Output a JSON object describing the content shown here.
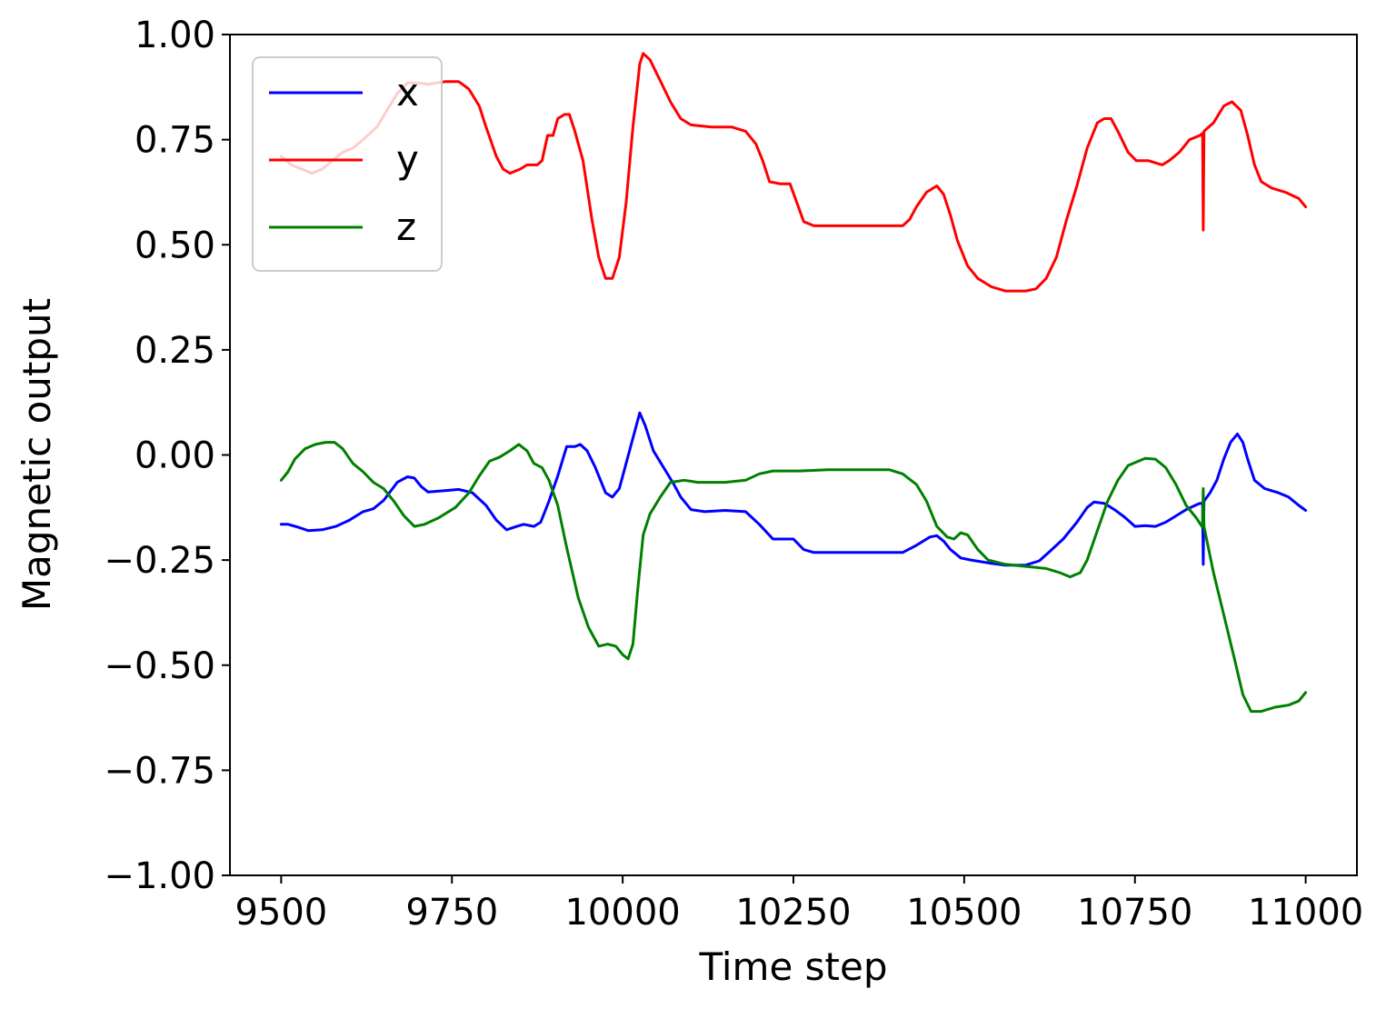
{
  "chart_data": {
    "type": "line",
    "xlabel": "Time step",
    "ylabel": "Magnetic output",
    "xlim": [
      9425,
      11075
    ],
    "ylim": [
      -1.0,
      1.0
    ],
    "x_ticks": [
      9500,
      9750,
      10000,
      10250,
      10500,
      10750,
      11000
    ],
    "x_tick_labels": [
      "9500",
      "9750",
      "10000",
      "10250",
      "10500",
      "10750",
      "11000"
    ],
    "y_ticks": [
      1.0,
      0.75,
      0.5,
      0.25,
      0.0,
      -0.25,
      -0.5,
      -0.75,
      -1.0
    ],
    "y_tick_labels": [
      "1.00",
      "0.75",
      "0.50",
      "0.25",
      "0.00",
      "−0.25",
      "−0.50",
      "−0.75",
      "−1.00"
    ],
    "grid": false,
    "legend_position": "top-left",
    "series": [
      {
        "name": "x",
        "color": "#0000ff",
        "points": [
          [
            9500,
            -0.165
          ],
          [
            9510,
            -0.165
          ],
          [
            9525,
            -0.172
          ],
          [
            9540,
            -0.18
          ],
          [
            9560,
            -0.178
          ],
          [
            9580,
            -0.17
          ],
          [
            9600,
            -0.155
          ],
          [
            9620,
            -0.135
          ],
          [
            9635,
            -0.128
          ],
          [
            9650,
            -0.108
          ],
          [
            9670,
            -0.065
          ],
          [
            9685,
            -0.052
          ],
          [
            9695,
            -0.055
          ],
          [
            9705,
            -0.075
          ],
          [
            9715,
            -0.088
          ],
          [
            9740,
            -0.085
          ],
          [
            9760,
            -0.082
          ],
          [
            9780,
            -0.09
          ],
          [
            9800,
            -0.12
          ],
          [
            9815,
            -0.155
          ],
          [
            9830,
            -0.178
          ],
          [
            9845,
            -0.17
          ],
          [
            9855,
            -0.165
          ],
          [
            9870,
            -0.17
          ],
          [
            9880,
            -0.16
          ],
          [
            9892,
            -0.11
          ],
          [
            9905,
            -0.05
          ],
          [
            9918,
            0.02
          ],
          [
            9930,
            0.02
          ],
          [
            9938,
            0.025
          ],
          [
            9948,
            0.01
          ],
          [
            9960,
            -0.03
          ],
          [
            9975,
            -0.09
          ],
          [
            9985,
            -0.1
          ],
          [
            9995,
            -0.08
          ],
          [
            10005,
            -0.02
          ],
          [
            10015,
            0.04
          ],
          [
            10025,
            0.1
          ],
          [
            10033,
            0.07
          ],
          [
            10045,
            0.01
          ],
          [
            10060,
            -0.03
          ],
          [
            10075,
            -0.07
          ],
          [
            10085,
            -0.1
          ],
          [
            10100,
            -0.13
          ],
          [
            10120,
            -0.135
          ],
          [
            10150,
            -0.132
          ],
          [
            10180,
            -0.135
          ],
          [
            10200,
            -0.165
          ],
          [
            10220,
            -0.2
          ],
          [
            10240,
            -0.2
          ],
          [
            10250,
            -0.2
          ],
          [
            10265,
            -0.225
          ],
          [
            10280,
            -0.232
          ],
          [
            10320,
            -0.232
          ],
          [
            10360,
            -0.232
          ],
          [
            10410,
            -0.232
          ],
          [
            10430,
            -0.215
          ],
          [
            10450,
            -0.195
          ],
          [
            10460,
            -0.192
          ],
          [
            10470,
            -0.205
          ],
          [
            10480,
            -0.225
          ],
          [
            10495,
            -0.245
          ],
          [
            10510,
            -0.25
          ],
          [
            10540,
            -0.258
          ],
          [
            10560,
            -0.262
          ],
          [
            10590,
            -0.262
          ],
          [
            10610,
            -0.252
          ],
          [
            10625,
            -0.23
          ],
          [
            10645,
            -0.2
          ],
          [
            10665,
            -0.16
          ],
          [
            10680,
            -0.125
          ],
          [
            10690,
            -0.112
          ],
          [
            10705,
            -0.115
          ],
          [
            10720,
            -0.13
          ],
          [
            10735,
            -0.148
          ],
          [
            10750,
            -0.17
          ],
          [
            10765,
            -0.168
          ],
          [
            10780,
            -0.17
          ],
          [
            10795,
            -0.16
          ],
          [
            10810,
            -0.145
          ],
          [
            10825,
            -0.13
          ],
          [
            10838,
            -0.12
          ],
          [
            10845,
            -0.115
          ],
          [
            10849,
            -0.115
          ],
          [
            10850,
            -0.26
          ],
          [
            10851,
            -0.11
          ],
          [
            10860,
            -0.09
          ],
          [
            10870,
            -0.06
          ],
          [
            10880,
            -0.01
          ],
          [
            10890,
            0.03
          ],
          [
            10900,
            0.05
          ],
          [
            10908,
            0.03
          ],
          [
            10915,
            -0.01
          ],
          [
            10925,
            -0.06
          ],
          [
            10940,
            -0.08
          ],
          [
            10960,
            -0.09
          ],
          [
            10975,
            -0.1
          ],
          [
            10990,
            -0.12
          ],
          [
            11000,
            -0.132
          ]
        ]
      },
      {
        "name": "y",
        "color": "#ff0000",
        "points": [
          [
            9500,
            0.71
          ],
          [
            9515,
            0.69
          ],
          [
            9530,
            0.68
          ],
          [
            9545,
            0.67
          ],
          [
            9560,
            0.68
          ],
          [
            9575,
            0.7
          ],
          [
            9590,
            0.72
          ],
          [
            9605,
            0.73
          ],
          [
            9620,
            0.75
          ],
          [
            9640,
            0.78
          ],
          [
            9655,
            0.82
          ],
          [
            9670,
            0.86
          ],
          [
            9685,
            0.885
          ],
          [
            9700,
            0.885
          ],
          [
            9715,
            0.882
          ],
          [
            9740,
            0.888
          ],
          [
            9760,
            0.888
          ],
          [
            9775,
            0.87
          ],
          [
            9790,
            0.83
          ],
          [
            9800,
            0.78
          ],
          [
            9815,
            0.71
          ],
          [
            9825,
            0.68
          ],
          [
            9835,
            0.67
          ],
          [
            9850,
            0.68
          ],
          [
            9860,
            0.69
          ],
          [
            9875,
            0.69
          ],
          [
            9882,
            0.7
          ],
          [
            9890,
            0.76
          ],
          [
            9898,
            0.76
          ],
          [
            9905,
            0.8
          ],
          [
            9915,
            0.81
          ],
          [
            9922,
            0.81
          ],
          [
            9930,
            0.77
          ],
          [
            9942,
            0.7
          ],
          [
            9955,
            0.56
          ],
          [
            9965,
            0.47
          ],
          [
            9975,
            0.42
          ],
          [
            9985,
            0.42
          ],
          [
            9995,
            0.47
          ],
          [
            10005,
            0.6
          ],
          [
            10015,
            0.78
          ],
          [
            10025,
            0.93
          ],
          [
            10030,
            0.955
          ],
          [
            10040,
            0.94
          ],
          [
            10055,
            0.89
          ],
          [
            10070,
            0.84
          ],
          [
            10085,
            0.8
          ],
          [
            10100,
            0.785
          ],
          [
            10130,
            0.78
          ],
          [
            10160,
            0.78
          ],
          [
            10180,
            0.77
          ],
          [
            10195,
            0.74
          ],
          [
            10205,
            0.7
          ],
          [
            10215,
            0.65
          ],
          [
            10230,
            0.645
          ],
          [
            10245,
            0.645
          ],
          [
            10255,
            0.6
          ],
          [
            10265,
            0.555
          ],
          [
            10280,
            0.545
          ],
          [
            10320,
            0.545
          ],
          [
            10360,
            0.545
          ],
          [
            10410,
            0.545
          ],
          [
            10420,
            0.56
          ],
          [
            10430,
            0.59
          ],
          [
            10445,
            0.625
          ],
          [
            10460,
            0.64
          ],
          [
            10470,
            0.62
          ],
          [
            10480,
            0.57
          ],
          [
            10490,
            0.51
          ],
          [
            10505,
            0.45
          ],
          [
            10520,
            0.42
          ],
          [
            10540,
            0.4
          ],
          [
            10560,
            0.39
          ],
          [
            10590,
            0.39
          ],
          [
            10605,
            0.395
          ],
          [
            10620,
            0.42
          ],
          [
            10635,
            0.47
          ],
          [
            10650,
            0.56
          ],
          [
            10665,
            0.64
          ],
          [
            10680,
            0.73
          ],
          [
            10695,
            0.79
          ],
          [
            10705,
            0.8
          ],
          [
            10715,
            0.8
          ],
          [
            10725,
            0.77
          ],
          [
            10740,
            0.72
          ],
          [
            10752,
            0.7
          ],
          [
            10770,
            0.7
          ],
          [
            10790,
            0.69
          ],
          [
            10800,
            0.7
          ],
          [
            10815,
            0.72
          ],
          [
            10830,
            0.75
          ],
          [
            10845,
            0.76
          ],
          [
            10849,
            0.765
          ],
          [
            10850,
            0.535
          ],
          [
            10851,
            0.77
          ],
          [
            10865,
            0.79
          ],
          [
            10880,
            0.83
          ],
          [
            10892,
            0.84
          ],
          [
            10905,
            0.82
          ],
          [
            10915,
            0.76
          ],
          [
            10925,
            0.69
          ],
          [
            10935,
            0.65
          ],
          [
            10950,
            0.635
          ],
          [
            10970,
            0.625
          ],
          [
            10990,
            0.61
          ],
          [
            11000,
            0.59
          ]
        ]
      },
      {
        "name": "z",
        "color": "#008000",
        "points": [
          [
            9500,
            -0.06
          ],
          [
            9510,
            -0.04
          ],
          [
            9520,
            -0.01
          ],
          [
            9535,
            0.015
          ],
          [
            9550,
            0.025
          ],
          [
            9565,
            0.03
          ],
          [
            9578,
            0.03
          ],
          [
            9590,
            0.015
          ],
          [
            9605,
            -0.02
          ],
          [
            9620,
            -0.04
          ],
          [
            9635,
            -0.065
          ],
          [
            9650,
            -0.08
          ],
          [
            9665,
            -0.11
          ],
          [
            9680,
            -0.145
          ],
          [
            9695,
            -0.17
          ],
          [
            9710,
            -0.165
          ],
          [
            9730,
            -0.15
          ],
          [
            9755,
            -0.125
          ],
          [
            9775,
            -0.09
          ],
          [
            9790,
            -0.05
          ],
          [
            9805,
            -0.015
          ],
          [
            9820,
            -0.005
          ],
          [
            9835,
            0.01
          ],
          [
            9848,
            0.025
          ],
          [
            9860,
            0.01
          ],
          [
            9870,
            -0.02
          ],
          [
            9882,
            -0.03
          ],
          [
            9892,
            -0.06
          ],
          [
            9905,
            -0.12
          ],
          [
            9918,
            -0.22
          ],
          [
            9935,
            -0.34
          ],
          [
            9950,
            -0.41
          ],
          [
            9965,
            -0.455
          ],
          [
            9978,
            -0.45
          ],
          [
            9990,
            -0.455
          ],
          [
            10000,
            -0.475
          ],
          [
            10008,
            -0.485
          ],
          [
            10015,
            -0.45
          ],
          [
            10022,
            -0.32
          ],
          [
            10030,
            -0.19
          ],
          [
            10040,
            -0.14
          ],
          [
            10055,
            -0.1
          ],
          [
            10070,
            -0.065
          ],
          [
            10090,
            -0.06
          ],
          [
            10110,
            -0.065
          ],
          [
            10150,
            -0.065
          ],
          [
            10180,
            -0.06
          ],
          [
            10200,
            -0.045
          ],
          [
            10220,
            -0.038
          ],
          [
            10260,
            -0.038
          ],
          [
            10300,
            -0.035
          ],
          [
            10340,
            -0.035
          ],
          [
            10390,
            -0.035
          ],
          [
            10410,
            -0.045
          ],
          [
            10430,
            -0.07
          ],
          [
            10445,
            -0.11
          ],
          [
            10460,
            -0.17
          ],
          [
            10475,
            -0.195
          ],
          [
            10485,
            -0.2
          ],
          [
            10495,
            -0.185
          ],
          [
            10505,
            -0.19
          ],
          [
            10520,
            -0.225
          ],
          [
            10535,
            -0.25
          ],
          [
            10560,
            -0.26
          ],
          [
            10590,
            -0.265
          ],
          [
            10620,
            -0.27
          ],
          [
            10640,
            -0.28
          ],
          [
            10655,
            -0.29
          ],
          [
            10670,
            -0.28
          ],
          [
            10680,
            -0.25
          ],
          [
            10695,
            -0.18
          ],
          [
            10710,
            -0.11
          ],
          [
            10725,
            -0.06
          ],
          [
            10740,
            -0.025
          ],
          [
            10755,
            -0.015
          ],
          [
            10765,
            -0.008
          ],
          [
            10780,
            -0.01
          ],
          [
            10795,
            -0.03
          ],
          [
            10810,
            -0.07
          ],
          [
            10825,
            -0.12
          ],
          [
            10840,
            -0.15
          ],
          [
            10848,
            -0.17
          ],
          [
            10849,
            -0.16
          ],
          [
            10850,
            -0.08
          ],
          [
            10851,
            -0.17
          ],
          [
            10865,
            -0.28
          ],
          [
            10880,
            -0.38
          ],
          [
            10895,
            -0.48
          ],
          [
            10908,
            -0.57
          ],
          [
            10920,
            -0.61
          ],
          [
            10935,
            -0.61
          ],
          [
            10955,
            -0.6
          ],
          [
            10975,
            -0.595
          ],
          [
            10990,
            -0.585
          ],
          [
            11000,
            -0.565
          ]
        ]
      }
    ]
  }
}
